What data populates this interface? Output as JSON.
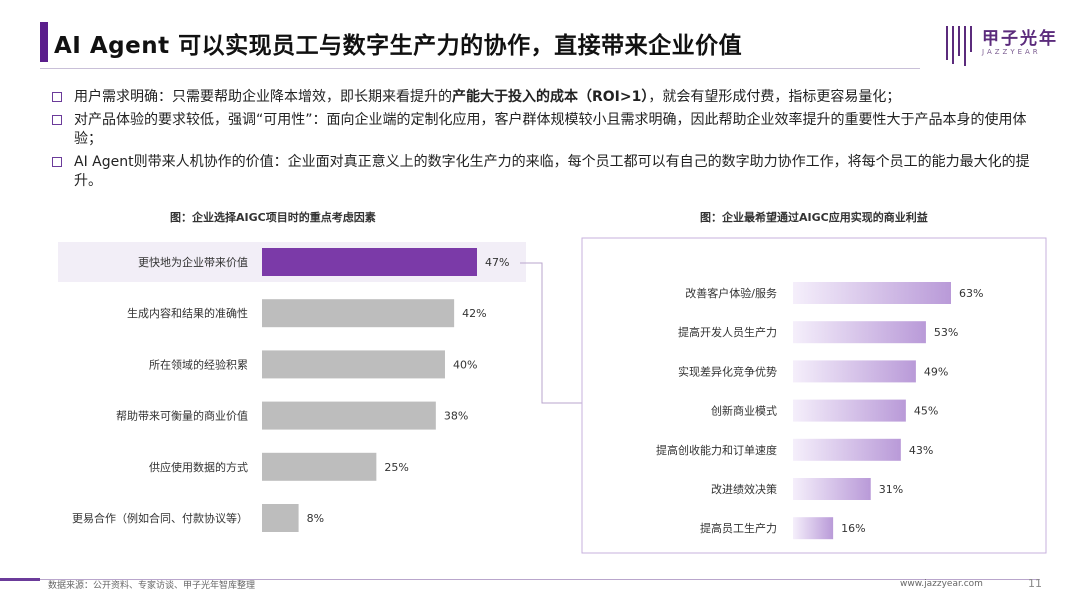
{
  "header": {
    "title": "AI Agent 可以实现员工与数字生产力的协作，直接带来企业价值",
    "logo_text": "甲子光年",
    "logo_sub": "JAZZYEAR"
  },
  "bullets": [
    {
      "pre": "用户需求明确：只需要帮助企业降本增效，即长期来看提升的",
      "bold": "产能大于投入的成本（ROI>1）",
      "post": "，就会有望形成付费，指标更容易量化；"
    },
    {
      "pre": "对产品体验的要求较低，强调“可用性”：面向企业端的定制化应用，客户群体规模较小且需求明确，因此帮助企业效率提升的重要性大于产品本身的使用体验；",
      "bold": "",
      "post": ""
    },
    {
      "pre": "AI Agent则带来人机协作的价值：企业面对真正意义上的数字化生产力的来临，每个员工都可以有自己的数字助力协作工作，将每个员工的能力最大化的提升。",
      "bold": "",
      "post": ""
    }
  ],
  "chart_data": [
    {
      "type": "bar",
      "orientation": "horizontal",
      "title": "图：企业选择AIGC项目时的重点考虑因素",
      "categories": [
        "更快地为企业带来价值",
        "生成内容和结果的准确性",
        "所在领域的经验积累",
        "帮助带来可衡量的商业价值",
        "供应使用数据的方式",
        "更易合作（例如合同、付款协议等）"
      ],
      "values": [
        47,
        42,
        40,
        38,
        25,
        8
      ],
      "labels": [
        "47%",
        "42%",
        "40%",
        "38%",
        "25%",
        "8%"
      ],
      "highlight_index": 0,
      "colors": {
        "highlight": "#7b3aa8",
        "default": "#bdbdbd",
        "highlight_bg": "#f2eef7"
      }
    },
    {
      "type": "bar",
      "orientation": "horizontal",
      "title": "图：企业最希望通过AIGC应用实现的商业利益",
      "categories": [
        "改善客户体验/服务",
        "提高开发人员生产力",
        "实现差异化竞争优势",
        "创新商业模式",
        "提高创收能力和订单速度",
        "改进绩效决策",
        "提高员工生产力"
      ],
      "values": [
        63,
        53,
        49,
        45,
        43,
        31,
        16
      ],
      "labels": [
        "63%",
        "53%",
        "49%",
        "45%",
        "43%",
        "31%",
        "16%"
      ],
      "colors": {
        "gradient_start": "#f5effb",
        "gradient_end": "#b99ad8",
        "border": "#c7b1de"
      }
    }
  ],
  "footer": {
    "source": "数据来源：公开资料、专家访谈、甲子光年智库整理",
    "url": "www.jazzyear.com",
    "page": "11"
  }
}
